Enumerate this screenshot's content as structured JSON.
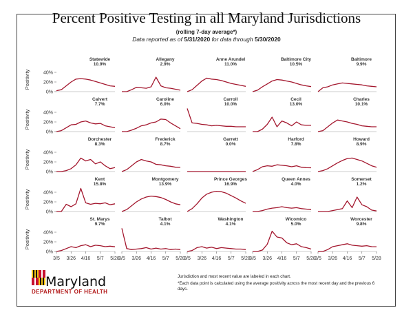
{
  "title": "Percent Positive Testing in all Maryland Jurisdictions",
  "subtitle": "(rolling 7-day average*)",
  "report": {
    "prefix": "Data reported as of",
    "as_of": "5/31/2020",
    "middle": "for data through",
    "through": "5/30/2020"
  },
  "logo": {
    "word": "Maryland",
    "department": "DEPARTMENT OF HEALTH"
  },
  "notes": {
    "line1": "Jurisdiction and most recent value are labeled in each chart.",
    "line2": "*Each data point is calculated using the average positivity across the most recent day and the previous 6 days."
  },
  "colors": {
    "line": "#a3162d",
    "tick": "#333333",
    "grid": "#d0d0d0"
  },
  "chart_data": {
    "type": "line",
    "layout": "small-multiples 5x5",
    "ylabel": "Positivity",
    "yticks": [
      "0%",
      "20%",
      "40%"
    ],
    "ylim": [
      0,
      50
    ],
    "xticks": [
      "3/5",
      "3/26",
      "4/16",
      "5/7",
      "5/28"
    ],
    "x_dates": [
      "3/5",
      "3/12",
      "3/19",
      "3/26",
      "4/2",
      "4/9",
      "4/16",
      "4/23",
      "4/30",
      "5/7",
      "5/14",
      "5/21",
      "5/28"
    ],
    "panels": [
      {
        "name": "Statewide",
        "value": "10.9%",
        "y": [
          2,
          4,
          12,
          20,
          26,
          27,
          26,
          24,
          21,
          18,
          15,
          12,
          11
        ]
      },
      {
        "name": "Allegany",
        "value": "2.9%",
        "y": [
          0,
          0,
          4,
          9,
          8,
          7,
          10,
          30,
          12,
          8,
          7,
          5,
          3
        ]
      },
      {
        "name": "Anne Arundel",
        "value": "11.0%",
        "y": [
          0,
          4,
          13,
          22,
          28,
          26,
          25,
          23,
          20,
          17,
          15,
          13,
          11
        ]
      },
      {
        "name": "Baltimore City",
        "value": "10.5%",
        "y": [
          0,
          3,
          10,
          16,
          22,
          25,
          24,
          22,
          20,
          17,
          14,
          12,
          10.5
        ]
      },
      {
        "name": "Baltimore",
        "value": "9.9%",
        "y": [
          0,
          8,
          10,
          14,
          16,
          18,
          17,
          16,
          15,
          14,
          12,
          11,
          10
        ]
      },
      {
        "name": "Calvert",
        "value": "7.7%",
        "y": [
          0,
          2,
          8,
          14,
          15,
          20,
          22,
          18,
          16,
          17,
          12,
          10,
          8
        ]
      },
      {
        "name": "Caroline",
        "value": "6.0%",
        "y": [
          0,
          0,
          3,
          7,
          12,
          14,
          18,
          20,
          26,
          25,
          18,
          12,
          6
        ]
      },
      {
        "name": "Carroll",
        "value": "10.0%",
        "y": [
          48,
          18,
          17,
          15,
          14,
          12,
          13,
          12,
          11,
          11,
          10,
          10,
          10
        ]
      },
      {
        "name": "Cecil",
        "value": "13.0%",
        "y": [
          0,
          0,
          5,
          15,
          30,
          10,
          22,
          18,
          12,
          20,
          14,
          13,
          13
        ]
      },
      {
        "name": "Charles",
        "value": "10.1%",
        "y": [
          0,
          2,
          10,
          18,
          24,
          22,
          20,
          17,
          15,
          12,
          11,
          10,
          10
        ]
      },
      {
        "name": "Dorchester",
        "value": "8.3%",
        "y": [
          0,
          0,
          2,
          6,
          14,
          28,
          22,
          25,
          16,
          20,
          12,
          6,
          8.3
        ]
      },
      {
        "name": "Frederick",
        "value": "8.7%",
        "y": [
          0,
          4,
          12,
          20,
          25,
          22,
          20,
          15,
          14,
          12,
          11,
          9,
          8.7
        ]
      },
      {
        "name": "Garrett",
        "value": "0.0%",
        "y": [
          0,
          0,
          0,
          0,
          0,
          0,
          0,
          0,
          0,
          0,
          0,
          0,
          0
        ]
      },
      {
        "name": "Harford",
        "value": "7.8%",
        "y": [
          0,
          4,
          10,
          12,
          11,
          14,
          13,
          12,
          10,
          12,
          9,
          8,
          7.8
        ]
      },
      {
        "name": "Howard",
        "value": "8.9%",
        "y": [
          0,
          2,
          6,
          12,
          18,
          23,
          27,
          28,
          25,
          22,
          17,
          12,
          9
        ]
      },
      {
        "name": "Kent",
        "value": "15.8%",
        "y": [
          0,
          0,
          15,
          10,
          16,
          48,
          18,
          15,
          17,
          16,
          18,
          14,
          16
        ]
      },
      {
        "name": "Montgomery",
        "value": "13.9%",
        "y": [
          0,
          4,
          12,
          20,
          26,
          30,
          32,
          31,
          29,
          25,
          20,
          16,
          14
        ]
      },
      {
        "name": "Prince Georges",
        "value": "16.9%",
        "y": [
          0,
          6,
          16,
          28,
          36,
          40,
          42,
          41,
          38,
          33,
          28,
          22,
          17
        ]
      },
      {
        "name": "Queen Annes",
        "value": "4.0%",
        "y": [
          0,
          0,
          2,
          5,
          7,
          8,
          10,
          8,
          7,
          8,
          6,
          5,
          4
        ]
      },
      {
        "name": "Somerset",
        "value": "1.2%",
        "y": [
          0,
          0,
          0,
          2,
          4,
          6,
          22,
          8,
          30,
          14,
          10,
          3,
          1.2
        ]
      },
      {
        "name": "St. Marys",
        "value": "9.7%",
        "y": [
          0,
          2,
          6,
          10,
          8,
          12,
          14,
          10,
          13,
          12,
          10,
          11,
          9.7
        ]
      },
      {
        "name": "Talbot",
        "value": "4.1%",
        "y": [
          48,
          6,
          4,
          5,
          6,
          8,
          5,
          7,
          5,
          6,
          4,
          5,
          4
        ]
      },
      {
        "name": "Washington",
        "value": "4.1%",
        "y": [
          0,
          2,
          8,
          10,
          7,
          9,
          6,
          8,
          7,
          6,
          5,
          5,
          4
        ]
      },
      {
        "name": "Wicomico",
        "value": "5.0%",
        "y": [
          0,
          0,
          3,
          15,
          42,
          30,
          28,
          18,
          14,
          16,
          10,
          8,
          5
        ]
      },
      {
        "name": "Worcester",
        "value": "9.8%",
        "y": [
          0,
          0,
          4,
          10,
          12,
          14,
          16,
          13,
          12,
          11,
          12,
          10,
          9.8
        ]
      }
    ]
  }
}
